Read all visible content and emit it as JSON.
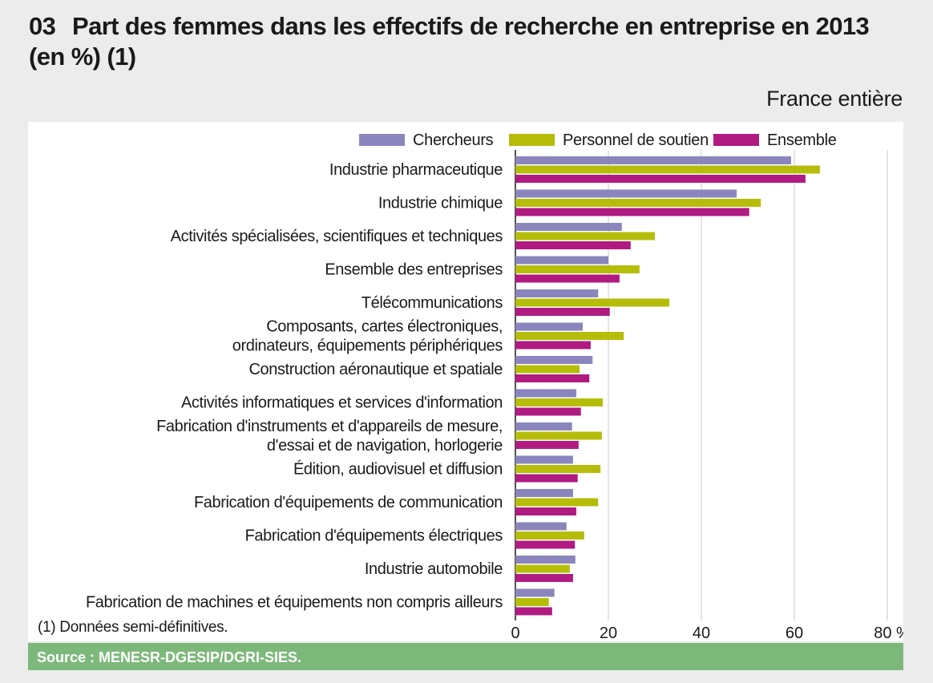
{
  "title_number": "03",
  "title": "Part des femmes dans les effectifs de recherche en entreprise en 2013 (en %) (1)",
  "subtitle": "France entière",
  "footnote": "(1) Données semi-définitives.",
  "source": "Source : MENESR-DGESIP/DGRI-SIES.",
  "chart_data": {
    "type": "bar",
    "orientation": "horizontal",
    "title": "Part des femmes dans les effectifs de recherche en entreprise en 2013 (en %) (1)",
    "xlabel": "%",
    "xlim": [
      0,
      80
    ],
    "xticks": [
      0,
      20,
      40,
      60,
      80
    ],
    "xtick_labels": [
      "0",
      "20",
      "40",
      "60",
      "80 %"
    ],
    "grid": true,
    "legend_position": "top",
    "categories": [
      [
        "Industrie pharmaceutique"
      ],
      [
        "Industrie chimique"
      ],
      [
        "Activités spécialisées, scientifiques et techniques"
      ],
      [
        "Ensemble des entreprises"
      ],
      [
        "Télécommunications"
      ],
      [
        "Composants, cartes électroniques,",
        "ordinateurs, équipements périphériques"
      ],
      [
        "Construction aéronautique et spatiale"
      ],
      [
        "Activités informatiques et services d'information"
      ],
      [
        "Fabrication d'instruments et d'appareils de mesure,",
        "d'essai et de navigation, horlogerie"
      ],
      [
        "Édition, audiovisuel et diffusion"
      ],
      [
        "Fabrication d'équipements de communication"
      ],
      [
        "Fabrication d'équipements électriques"
      ],
      [
        "Industrie automobile"
      ],
      [
        "Fabrication de machines et équipements non compris ailleurs"
      ]
    ],
    "series": [
      {
        "name": "Chercheurs",
        "color": "#8a86bd",
        "values": [
          59.3,
          47.6,
          22.9,
          20.0,
          17.8,
          14.5,
          16.6,
          13.1,
          12.2,
          12.4,
          12.4,
          11.0,
          12.9,
          8.4
        ]
      },
      {
        "name": "Personnel de soutien",
        "color": "#b5bd0a",
        "values": [
          65.5,
          52.8,
          30.0,
          26.7,
          33.1,
          23.3,
          13.8,
          18.8,
          18.6,
          18.3,
          17.8,
          14.8,
          11.7,
          7.2
        ]
      },
      {
        "name": "Ensemble",
        "color": "#b01b82",
        "values": [
          62.4,
          50.3,
          24.8,
          22.4,
          20.3,
          16.2,
          15.9,
          14.1,
          13.6,
          13.4,
          13.1,
          12.8,
          12.4,
          7.9
        ]
      }
    ]
  }
}
